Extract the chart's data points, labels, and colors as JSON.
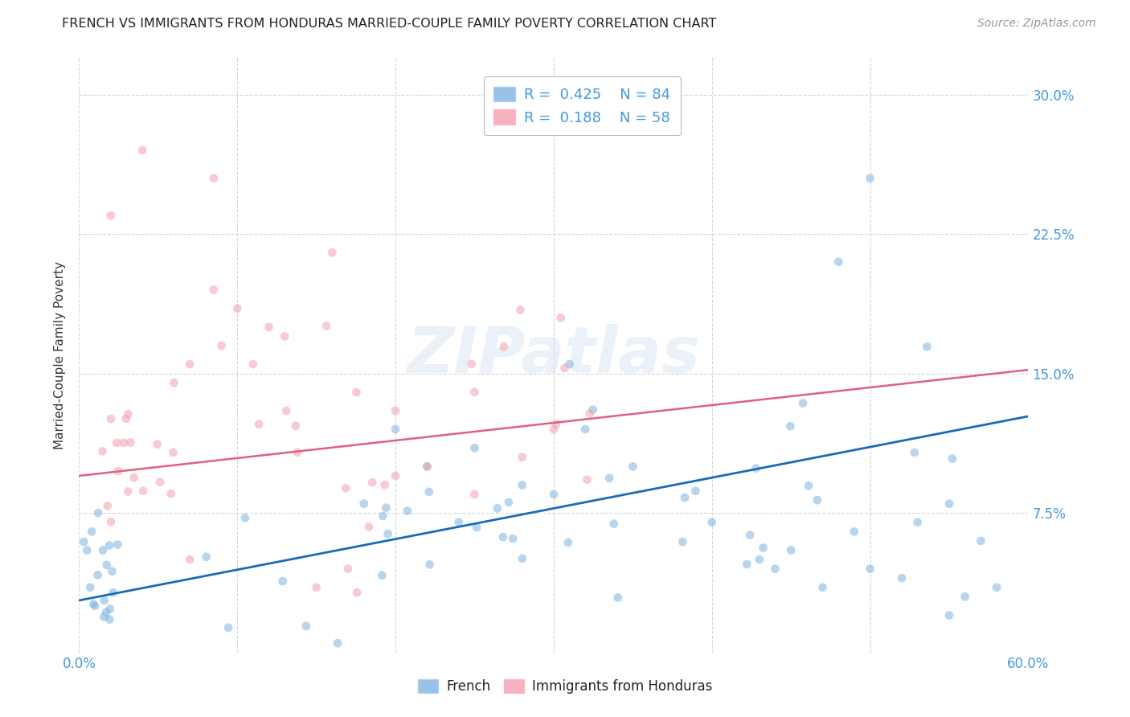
{
  "title": "FRENCH VS IMMIGRANTS FROM HONDURAS MARRIED-COUPLE FAMILY POVERTY CORRELATION CHART",
  "source": "Source: ZipAtlas.com",
  "ylabel": "Married-Couple Family Poverty",
  "xlim": [
    0.0,
    0.6
  ],
  "ylim": [
    0.0,
    0.32
  ],
  "xtick_positions": [
    0.0,
    0.1,
    0.2,
    0.3,
    0.4,
    0.5,
    0.6
  ],
  "xtick_labels": [
    "0.0%",
    "",
    "",
    "",
    "",
    "",
    "60.0%"
  ],
  "ytick_vals": [
    0.0,
    0.075,
    0.15,
    0.225,
    0.3
  ],
  "ytick_labels_right": [
    "",
    "7.5%",
    "15.0%",
    "22.5%",
    "30.0%"
  ],
  "blue_color": "#7EB3E0",
  "pink_color": "#F4A0B0",
  "blue_line_color": "#1A6BB5",
  "pink_line_color": "#E06080",
  "watermark": "ZIPatlas",
  "background_color": "#FFFFFF",
  "grid_color": "#CCCCCC",
  "tick_label_color": "#4499DD",
  "title_color": "#222222",
  "source_color": "#999999",
  "ylabel_color": "#333333",
  "legend_text_color": "#4499DD",
  "legend_r_label_color": "#333333",
  "blue_dot_alpha": 0.55,
  "pink_dot_alpha": 0.55,
  "dot_size": 60,
  "blue_slope": 0.165,
  "blue_intercept": 0.028,
  "pink_slope": 0.095,
  "pink_intercept": 0.095,
  "pink_line_style": "-",
  "pink_line_dashes": [
    5,
    3
  ]
}
